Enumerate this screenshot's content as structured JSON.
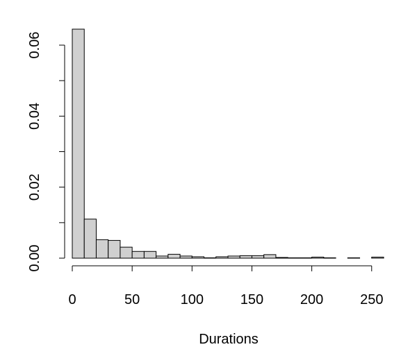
{
  "chart_data": {
    "type": "bar",
    "title": "",
    "xlabel": "Durations",
    "ylabel": "",
    "bin_width": 10,
    "bin_starts": [
      0,
      10,
      20,
      30,
      40,
      50,
      60,
      70,
      80,
      90,
      100,
      110,
      120,
      130,
      140,
      150,
      160,
      170,
      180,
      190,
      200,
      210,
      220,
      230,
      240,
      250
    ],
    "values": [
      0.0645,
      0.011,
      0.0052,
      0.005,
      0.0031,
      0.0019,
      0.0019,
      0.0006,
      0.0011,
      0.0006,
      0.0004,
      0.0001,
      0.0004,
      0.0006,
      0.0007,
      0.0007,
      0.001,
      0.0002,
      0.0001,
      0.0001,
      0.0003,
      0.0001,
      0.0,
      0.0001,
      0.0,
      0.0003
    ],
    "xlim": [
      0,
      260
    ],
    "ylim": [
      0,
      0.0645
    ],
    "xticks": [
      0,
      50,
      100,
      150,
      200,
      250
    ],
    "yticks": [
      0.0,
      0.01,
      0.02,
      0.03,
      0.04,
      0.05,
      0.06
    ],
    "ytick_labels": [
      {
        "value": 0.0,
        "label": "0.00"
      },
      {
        "value": 0.02,
        "label": "0.02"
      },
      {
        "value": 0.04,
        "label": "0.04"
      },
      {
        "value": 0.06,
        "label": "0.06"
      }
    ],
    "grid": false,
    "colors": {
      "bar_fill": "#d0d0d0",
      "bar_stroke": "#000000"
    }
  }
}
